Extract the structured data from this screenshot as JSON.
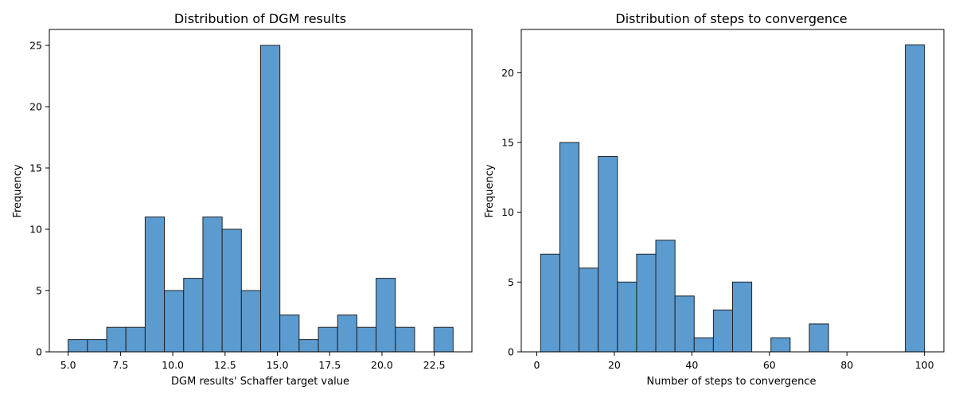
{
  "chart_data": [
    {
      "type": "bar",
      "title": "Distribution of DGM results",
      "xlabel": "DGM results' Schaffer target value",
      "ylabel": "Frequency",
      "xlim": [
        4.1,
        24.3
      ],
      "ylim": [
        0,
        26.3
      ],
      "xticks": [
        5.0,
        7.5,
        10.0,
        12.5,
        15.0,
        17.5,
        20.0,
        22.5
      ],
      "xtick_labels": [
        "5.0",
        "7.5",
        "10.0",
        "12.5",
        "15.0",
        "17.5",
        "20.0",
        "22.5"
      ],
      "yticks": [
        0,
        5,
        10,
        15,
        20,
        25
      ],
      "ytick_labels": [
        "0",
        "5",
        "10",
        "15",
        "20",
        "25"
      ],
      "bin_start": 5.0,
      "bin_width": 0.92,
      "values": [
        1,
        1,
        2,
        2,
        11,
        5,
        6,
        11,
        10,
        5,
        25,
        3,
        1,
        2,
        3,
        2,
        6,
        2,
        0,
        2
      ],
      "color": "#5b9bd0",
      "grid": false
    },
    {
      "type": "bar",
      "title": "Distribution of steps to convergence",
      "xlabel": "Number of steps to convergence",
      "ylabel": "Frequency",
      "xlim": [
        -4,
        105
      ],
      "ylim": [
        0,
        23.1
      ],
      "xticks": [
        0,
        20,
        40,
        60,
        80,
        100
      ],
      "xtick_labels": [
        "0",
        "20",
        "40",
        "60",
        "80",
        "100"
      ],
      "yticks": [
        0,
        5,
        10,
        15,
        20
      ],
      "ytick_labels": [
        "0",
        "5",
        "10",
        "15",
        "20"
      ],
      "bin_start": 1,
      "bin_width": 4.95,
      "values": [
        7,
        15,
        6,
        14,
        5,
        7,
        8,
        4,
        1,
        3,
        5,
        0,
        1,
        0,
        2,
        0,
        0,
        0,
        0,
        22
      ],
      "color": "#5b9bd0",
      "grid": false
    }
  ]
}
